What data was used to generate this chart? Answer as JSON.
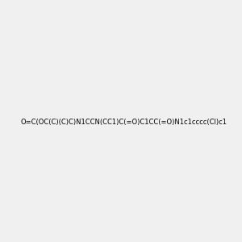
{
  "smiles": "O=C(OC(C)(C)C)N1CCN(CC1)C(=O)C1CC(=O)N1c1cccc(Cl)c1",
  "image_size": 300,
  "background_color": "#f0f0f0",
  "title": "",
  "bond_color": "black",
  "atom_colors": {
    "N": "#0000ff",
    "O": "#ff0000",
    "Cl": "#00aa00"
  }
}
